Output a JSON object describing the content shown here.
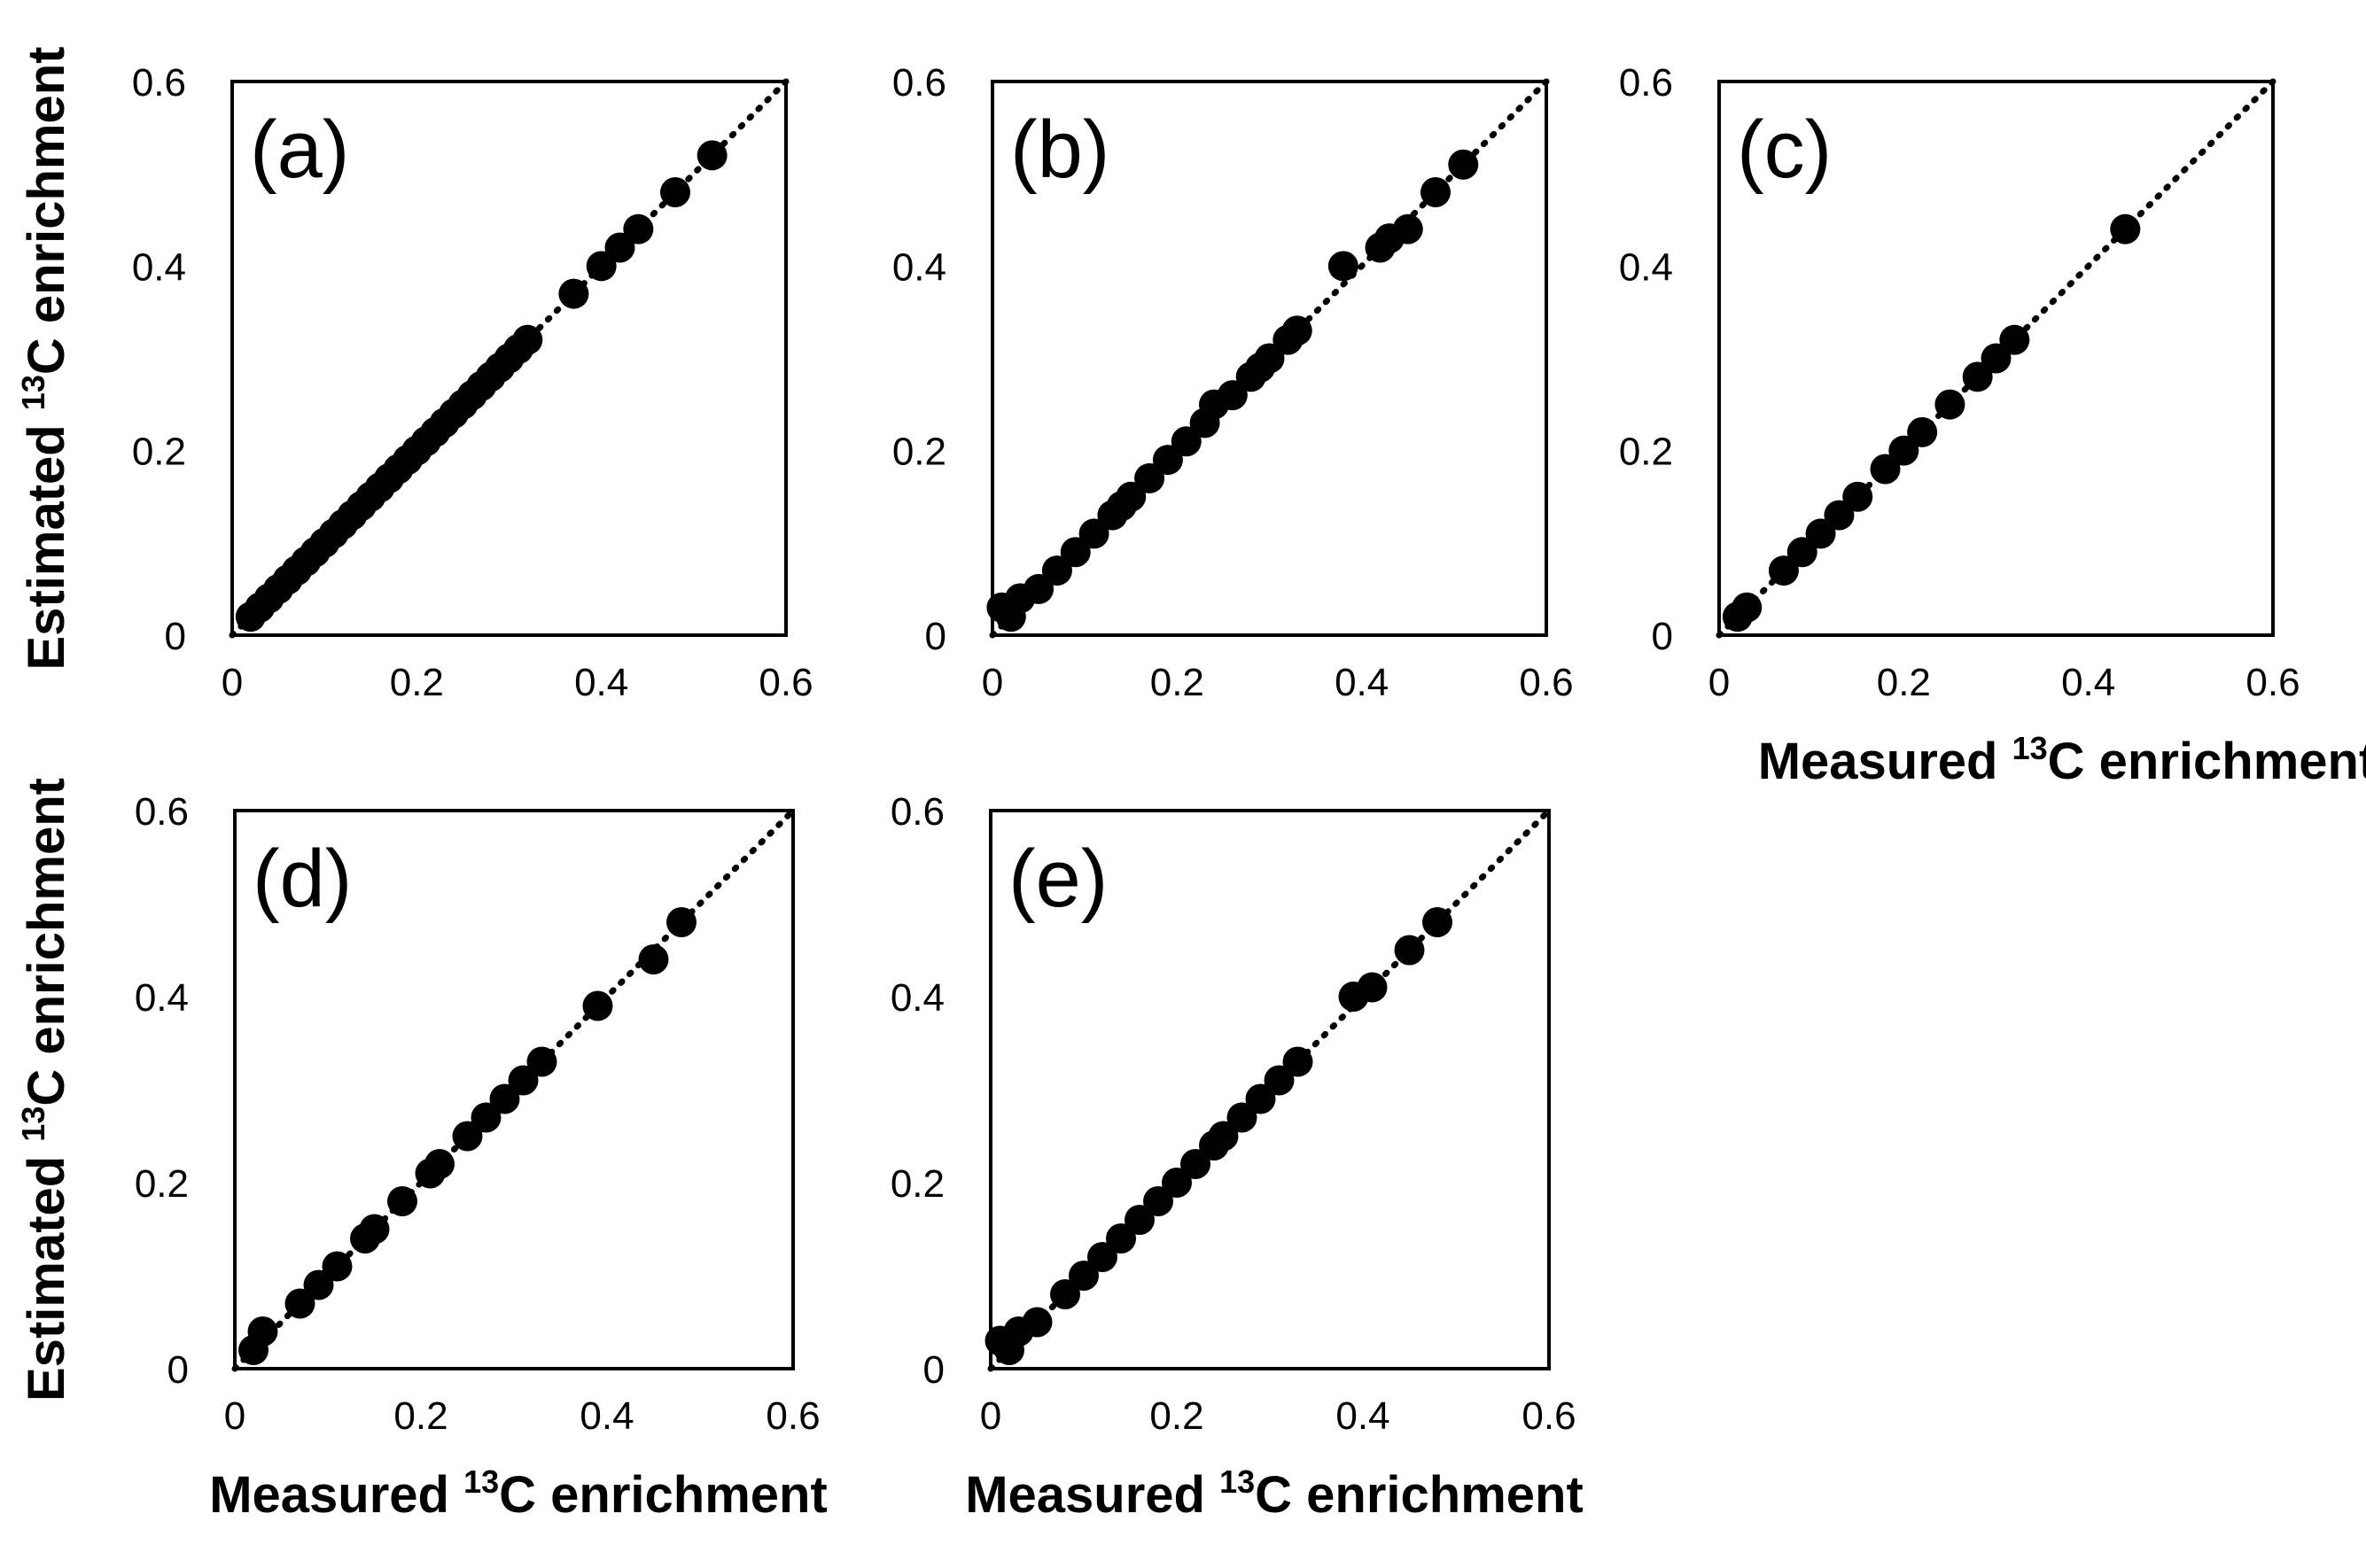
{
  "chart_data": [
    {
      "type": "scatter",
      "panel_label": "(a)",
      "xlim": [
        0,
        0.6
      ],
      "ylim": [
        0,
        0.6
      ],
      "x_ticks": [
        "0",
        "0.2",
        "0.4",
        "0.6"
      ],
      "y_ticks": [
        "0",
        "0.2",
        "0.4",
        "0.6"
      ],
      "xlabel": "",
      "ylabel": {
        "pre": "Estimated ",
        "sup": "13",
        "post": "C enrichment"
      },
      "reference_line": {
        "style": "dotted",
        "from": [
          0,
          0
        ],
        "to": [
          0.6,
          0.6
        ]
      },
      "points": [
        [
          0.02,
          0.02
        ],
        [
          0.03,
          0.03
        ],
        [
          0.04,
          0.04
        ],
        [
          0.05,
          0.05
        ],
        [
          0.06,
          0.06
        ],
        [
          0.07,
          0.07
        ],
        [
          0.08,
          0.08
        ],
        [
          0.09,
          0.09
        ],
        [
          0.1,
          0.1
        ],
        [
          0.11,
          0.11
        ],
        [
          0.12,
          0.12
        ],
        [
          0.13,
          0.13
        ],
        [
          0.14,
          0.14
        ],
        [
          0.15,
          0.15
        ],
        [
          0.16,
          0.16
        ],
        [
          0.17,
          0.17
        ],
        [
          0.18,
          0.18
        ],
        [
          0.19,
          0.19
        ],
        [
          0.2,
          0.2
        ],
        [
          0.21,
          0.21
        ],
        [
          0.22,
          0.22
        ],
        [
          0.23,
          0.23
        ],
        [
          0.24,
          0.24
        ],
        [
          0.25,
          0.25
        ],
        [
          0.26,
          0.26
        ],
        [
          0.27,
          0.27
        ],
        [
          0.28,
          0.28
        ],
        [
          0.29,
          0.29
        ],
        [
          0.3,
          0.3
        ],
        [
          0.31,
          0.31
        ],
        [
          0.32,
          0.32
        ],
        [
          0.37,
          0.37
        ],
        [
          0.4,
          0.4
        ],
        [
          0.42,
          0.42
        ],
        [
          0.44,
          0.44
        ],
        [
          0.48,
          0.48
        ],
        [
          0.52,
          0.52
        ]
      ]
    },
    {
      "type": "scatter",
      "panel_label": "(b)",
      "xlim": [
        0,
        0.6
      ],
      "ylim": [
        0,
        0.6
      ],
      "x_ticks": [
        "0",
        "0.2",
        "0.4",
        "0.6"
      ],
      "y_ticks": [
        "0",
        "0.2",
        "0.4",
        "0.6"
      ],
      "xlabel": "",
      "ylabel": "",
      "reference_line": {
        "style": "dotted",
        "from": [
          0,
          0
        ],
        "to": [
          0.6,
          0.6
        ]
      },
      "points": [
        [
          0.01,
          0.03
        ],
        [
          0.02,
          0.02
        ],
        [
          0.03,
          0.04
        ],
        [
          0.05,
          0.05
        ],
        [
          0.07,
          0.07
        ],
        [
          0.09,
          0.09
        ],
        [
          0.11,
          0.11
        ],
        [
          0.13,
          0.13
        ],
        [
          0.14,
          0.14
        ],
        [
          0.15,
          0.15
        ],
        [
          0.17,
          0.17
        ],
        [
          0.19,
          0.19
        ],
        [
          0.21,
          0.21
        ],
        [
          0.23,
          0.23
        ],
        [
          0.24,
          0.25
        ],
        [
          0.26,
          0.26
        ],
        [
          0.28,
          0.28
        ],
        [
          0.29,
          0.29
        ],
        [
          0.3,
          0.3
        ],
        [
          0.32,
          0.32
        ],
        [
          0.33,
          0.33
        ],
        [
          0.38,
          0.4
        ],
        [
          0.42,
          0.42
        ],
        [
          0.43,
          0.43
        ],
        [
          0.45,
          0.44
        ],
        [
          0.48,
          0.48
        ],
        [
          0.51,
          0.51
        ]
      ]
    },
    {
      "type": "scatter",
      "panel_label": "(c)",
      "xlim": [
        0,
        0.6
      ],
      "ylim": [
        0,
        0.6
      ],
      "x_ticks": [
        "0",
        "0.2",
        "0.4",
        "0.6"
      ],
      "y_ticks": [
        "0",
        "0.2",
        "0.4",
        "0.6"
      ],
      "xlabel": {
        "pre": "Measured ",
        "sup": "13",
        "post": "C enrichment"
      },
      "ylabel": "",
      "reference_line": {
        "style": "dotted",
        "from": [
          0,
          0
        ],
        "to": [
          0.6,
          0.6
        ]
      },
      "points": [
        [
          0.02,
          0.02
        ],
        [
          0.03,
          0.03
        ],
        [
          0.07,
          0.07
        ],
        [
          0.09,
          0.09
        ],
        [
          0.11,
          0.11
        ],
        [
          0.13,
          0.13
        ],
        [
          0.15,
          0.15
        ],
        [
          0.18,
          0.18
        ],
        [
          0.2,
          0.2
        ],
        [
          0.22,
          0.22
        ],
        [
          0.25,
          0.25
        ],
        [
          0.28,
          0.28
        ],
        [
          0.3,
          0.3
        ],
        [
          0.32,
          0.32
        ],
        [
          0.44,
          0.44
        ]
      ]
    },
    {
      "type": "scatter",
      "panel_label": "(d)",
      "xlim": [
        0,
        0.6
      ],
      "ylim": [
        0,
        0.6
      ],
      "x_ticks": [
        "0",
        "0.2",
        "0.4",
        "0.6"
      ],
      "y_ticks": [
        "0",
        "0.2",
        "0.4",
        "0.6"
      ],
      "xlabel": {
        "pre": "Measured ",
        "sup": "13",
        "post": "C enrichment"
      },
      "ylabel": {
        "pre": "Estimated ",
        "sup": "13",
        "post": "C enrichment"
      },
      "reference_line": {
        "style": "dotted",
        "from": [
          0,
          0
        ],
        "to": [
          0.6,
          0.6
        ]
      },
      "points": [
        [
          0.02,
          0.02
        ],
        [
          0.03,
          0.04
        ],
        [
          0.07,
          0.07
        ],
        [
          0.09,
          0.09
        ],
        [
          0.11,
          0.11
        ],
        [
          0.14,
          0.14
        ],
        [
          0.15,
          0.15
        ],
        [
          0.18,
          0.18
        ],
        [
          0.21,
          0.21
        ],
        [
          0.22,
          0.22
        ],
        [
          0.25,
          0.25
        ],
        [
          0.27,
          0.27
        ],
        [
          0.29,
          0.29
        ],
        [
          0.31,
          0.31
        ],
        [
          0.33,
          0.33
        ],
        [
          0.39,
          0.39
        ],
        [
          0.45,
          0.44
        ],
        [
          0.48,
          0.48
        ]
      ]
    },
    {
      "type": "scatter",
      "panel_label": "(e)",
      "xlim": [
        0,
        0.6
      ],
      "ylim": [
        0,
        0.6
      ],
      "x_ticks": [
        "0",
        "0.2",
        "0.4",
        "0.6"
      ],
      "y_ticks": [
        "0",
        "0.2",
        "0.4",
        "0.6"
      ],
      "xlabel": {
        "pre": "Measured ",
        "sup": "13",
        "post": "C enrichment"
      },
      "ylabel": "",
      "reference_line": {
        "style": "dotted",
        "from": [
          0,
          0
        ],
        "to": [
          0.6,
          0.6
        ]
      },
      "points": [
        [
          0.01,
          0.03
        ],
        [
          0.02,
          0.02
        ],
        [
          0.03,
          0.04
        ],
        [
          0.05,
          0.05
        ],
        [
          0.08,
          0.08
        ],
        [
          0.1,
          0.1
        ],
        [
          0.12,
          0.12
        ],
        [
          0.14,
          0.14
        ],
        [
          0.16,
          0.16
        ],
        [
          0.18,
          0.18
        ],
        [
          0.2,
          0.2
        ],
        [
          0.22,
          0.22
        ],
        [
          0.24,
          0.24
        ],
        [
          0.25,
          0.25
        ],
        [
          0.27,
          0.27
        ],
        [
          0.29,
          0.29
        ],
        [
          0.31,
          0.31
        ],
        [
          0.33,
          0.33
        ],
        [
          0.39,
          0.4
        ],
        [
          0.41,
          0.41
        ],
        [
          0.45,
          0.45
        ],
        [
          0.48,
          0.48
        ]
      ]
    }
  ]
}
